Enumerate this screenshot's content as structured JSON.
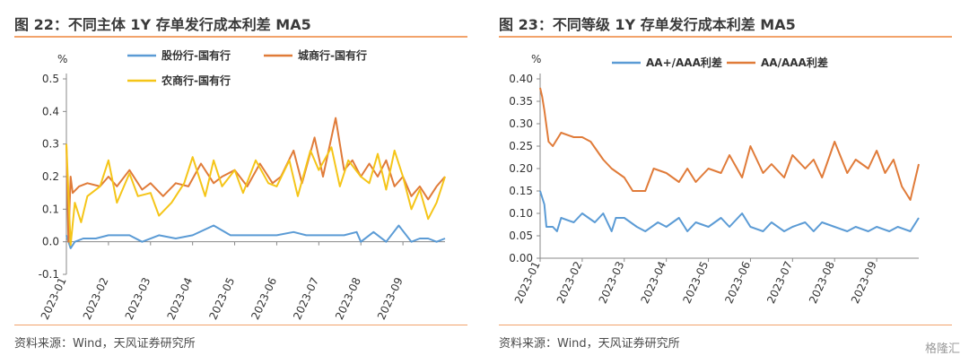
{
  "left": {
    "title": "图 22：不同主体 1Y 存单发行成本利差 MA5",
    "source": "资料来源：Wind，天风证券研究所"
  },
  "right": {
    "title": "图 23：不同等级 1Y 存单发行成本利差 MA5",
    "source": "资料来源：Wind，天风证券研究所"
  },
  "watermark": "格隆汇",
  "chart_data": [
    {
      "type": "line",
      "title": "图 22：不同主体 1Y 存单发行成本利差 MA5",
      "ylabel": "%",
      "ylim": [
        -0.1,
        0.5
      ],
      "yticks": [
        "-0.1",
        "0.0",
        "0.1",
        "0.2",
        "0.3",
        "0.4",
        "0.5"
      ],
      "xticks": [
        "2023-01",
        "2023-02",
        "2023-03",
        "2023-04",
        "2023-05",
        "2023-06",
        "2023-07",
        "2023-08",
        "2023-09"
      ],
      "legend": "top",
      "series": [
        {
          "name": "股份行-国有行",
          "color": "#5b9bd5",
          "x": [
            0.0,
            0.1,
            0.2,
            0.4,
            0.7,
            1.0,
            1.5,
            1.8,
            2.2,
            2.6,
            3.0,
            3.5,
            3.9,
            4.2,
            4.6,
            5.0,
            5.4,
            5.7,
            6.0,
            6.3,
            6.6,
            6.9,
            7.0,
            7.3,
            7.6,
            7.9,
            8.2,
            8.4,
            8.6,
            8.8,
            9.0
          ],
          "y": [
            0.02,
            -0.02,
            0.0,
            0.01,
            0.01,
            0.02,
            0.02,
            0.0,
            0.02,
            0.01,
            0.02,
            0.05,
            0.02,
            0.02,
            0.02,
            0.02,
            0.03,
            0.02,
            0.02,
            0.02,
            0.02,
            0.03,
            0.0,
            0.03,
            0.0,
            0.05,
            0.0,
            0.01,
            0.01,
            0.0,
            0.01
          ]
        },
        {
          "name": "城商行-国有行",
          "color": "#e07b39",
          "x": [
            0.0,
            0.05,
            0.1,
            0.15,
            0.3,
            0.5,
            0.8,
            1.0,
            1.2,
            1.5,
            1.8,
            2.0,
            2.3,
            2.6,
            2.9,
            3.2,
            3.5,
            3.7,
            4.0,
            4.3,
            4.6,
            4.9,
            5.1,
            5.4,
            5.6,
            5.9,
            6.1,
            6.4,
            6.6,
            6.8,
            7.0,
            7.2,
            7.4,
            7.6,
            7.8,
            8.0,
            8.2,
            8.4,
            8.6,
            8.8,
            9.0
          ],
          "y": [
            0.3,
            0.0,
            0.2,
            0.15,
            0.17,
            0.18,
            0.17,
            0.2,
            0.17,
            0.22,
            0.16,
            0.18,
            0.14,
            0.18,
            0.17,
            0.24,
            0.18,
            0.2,
            0.22,
            0.17,
            0.24,
            0.18,
            0.2,
            0.28,
            0.18,
            0.32,
            0.2,
            0.38,
            0.22,
            0.25,
            0.2,
            0.24,
            0.2,
            0.25,
            0.17,
            0.2,
            0.14,
            0.17,
            0.13,
            0.17,
            0.2
          ]
        },
        {
          "name": "农商行-国有行",
          "color": "#f5c518",
          "x": [
            0.0,
            0.1,
            0.2,
            0.35,
            0.5,
            0.8,
            1.0,
            1.2,
            1.5,
            1.7,
            2.0,
            2.2,
            2.5,
            2.8,
            3.0,
            3.3,
            3.5,
            3.7,
            4.0,
            4.2,
            4.5,
            4.8,
            5.0,
            5.3,
            5.5,
            5.8,
            6.0,
            6.3,
            6.5,
            6.7,
            7.0,
            7.2,
            7.4,
            7.6,
            7.8,
            8.0,
            8.2,
            8.4,
            8.6,
            8.8,
            9.0
          ],
          "y": [
            0.3,
            -0.01,
            0.12,
            0.06,
            0.14,
            0.17,
            0.25,
            0.12,
            0.21,
            0.14,
            0.15,
            0.08,
            0.12,
            0.18,
            0.26,
            0.14,
            0.25,
            0.17,
            0.22,
            0.15,
            0.25,
            0.18,
            0.17,
            0.25,
            0.14,
            0.28,
            0.22,
            0.29,
            0.17,
            0.25,
            0.2,
            0.18,
            0.27,
            0.16,
            0.28,
            0.2,
            0.1,
            0.16,
            0.07,
            0.12,
            0.2
          ]
        }
      ]
    },
    {
      "type": "line",
      "title": "图 23：不同等级 1Y 存单发行成本利差 MA5",
      "ylabel": "%",
      "ylim": [
        0.0,
        0.4
      ],
      "yticks": [
        "0.00",
        "0.05",
        "0.10",
        "0.15",
        "0.20",
        "0.25",
        "0.30",
        "0.35",
        "0.40"
      ],
      "xticks": [
        "2023-01",
        "2023-02",
        "2023-03",
        "2023-04",
        "2023-05",
        "2023-06",
        "2023-07",
        "2023-08",
        "2023-09"
      ],
      "legend": "top",
      "series": [
        {
          "name": "AA+/AAA利差",
          "color": "#5b9bd5",
          "x": [
            0.0,
            0.1,
            0.15,
            0.3,
            0.4,
            0.5,
            0.8,
            1.0,
            1.3,
            1.5,
            1.7,
            1.8,
            2.0,
            2.3,
            2.5,
            2.8,
            3.0,
            3.3,
            3.5,
            3.7,
            4.0,
            4.3,
            4.5,
            4.8,
            5.0,
            5.3,
            5.5,
            5.8,
            6.0,
            6.3,
            6.5,
            6.7,
            7.0,
            7.3,
            7.5,
            7.8,
            8.0,
            8.3,
            8.5,
            8.8,
            9.0
          ],
          "y": [
            0.15,
            0.12,
            0.07,
            0.07,
            0.06,
            0.09,
            0.08,
            0.1,
            0.08,
            0.1,
            0.06,
            0.09,
            0.09,
            0.07,
            0.06,
            0.08,
            0.07,
            0.09,
            0.06,
            0.08,
            0.07,
            0.09,
            0.07,
            0.1,
            0.07,
            0.06,
            0.08,
            0.06,
            0.07,
            0.08,
            0.06,
            0.08,
            0.07,
            0.06,
            0.07,
            0.06,
            0.07,
            0.06,
            0.07,
            0.06,
            0.09
          ]
        },
        {
          "name": "AA/AAA利差",
          "color": "#e07b39",
          "x": [
            0.0,
            0.05,
            0.1,
            0.2,
            0.3,
            0.5,
            0.8,
            1.0,
            1.2,
            1.5,
            1.7,
            2.0,
            2.2,
            2.5,
            2.7,
            3.0,
            3.3,
            3.5,
            3.7,
            4.0,
            4.3,
            4.5,
            4.8,
            5.0,
            5.3,
            5.5,
            5.8,
            6.0,
            6.3,
            6.5,
            6.7,
            7.0,
            7.3,
            7.5,
            7.8,
            8.0,
            8.2,
            8.4,
            8.6,
            8.8,
            9.0
          ],
          "y": [
            0.38,
            0.36,
            0.33,
            0.26,
            0.25,
            0.28,
            0.27,
            0.27,
            0.26,
            0.22,
            0.2,
            0.18,
            0.15,
            0.15,
            0.2,
            0.19,
            0.17,
            0.2,
            0.17,
            0.2,
            0.19,
            0.23,
            0.18,
            0.25,
            0.19,
            0.21,
            0.18,
            0.23,
            0.2,
            0.22,
            0.18,
            0.26,
            0.19,
            0.22,
            0.2,
            0.24,
            0.19,
            0.22,
            0.16,
            0.13,
            0.21
          ]
        }
      ]
    }
  ]
}
